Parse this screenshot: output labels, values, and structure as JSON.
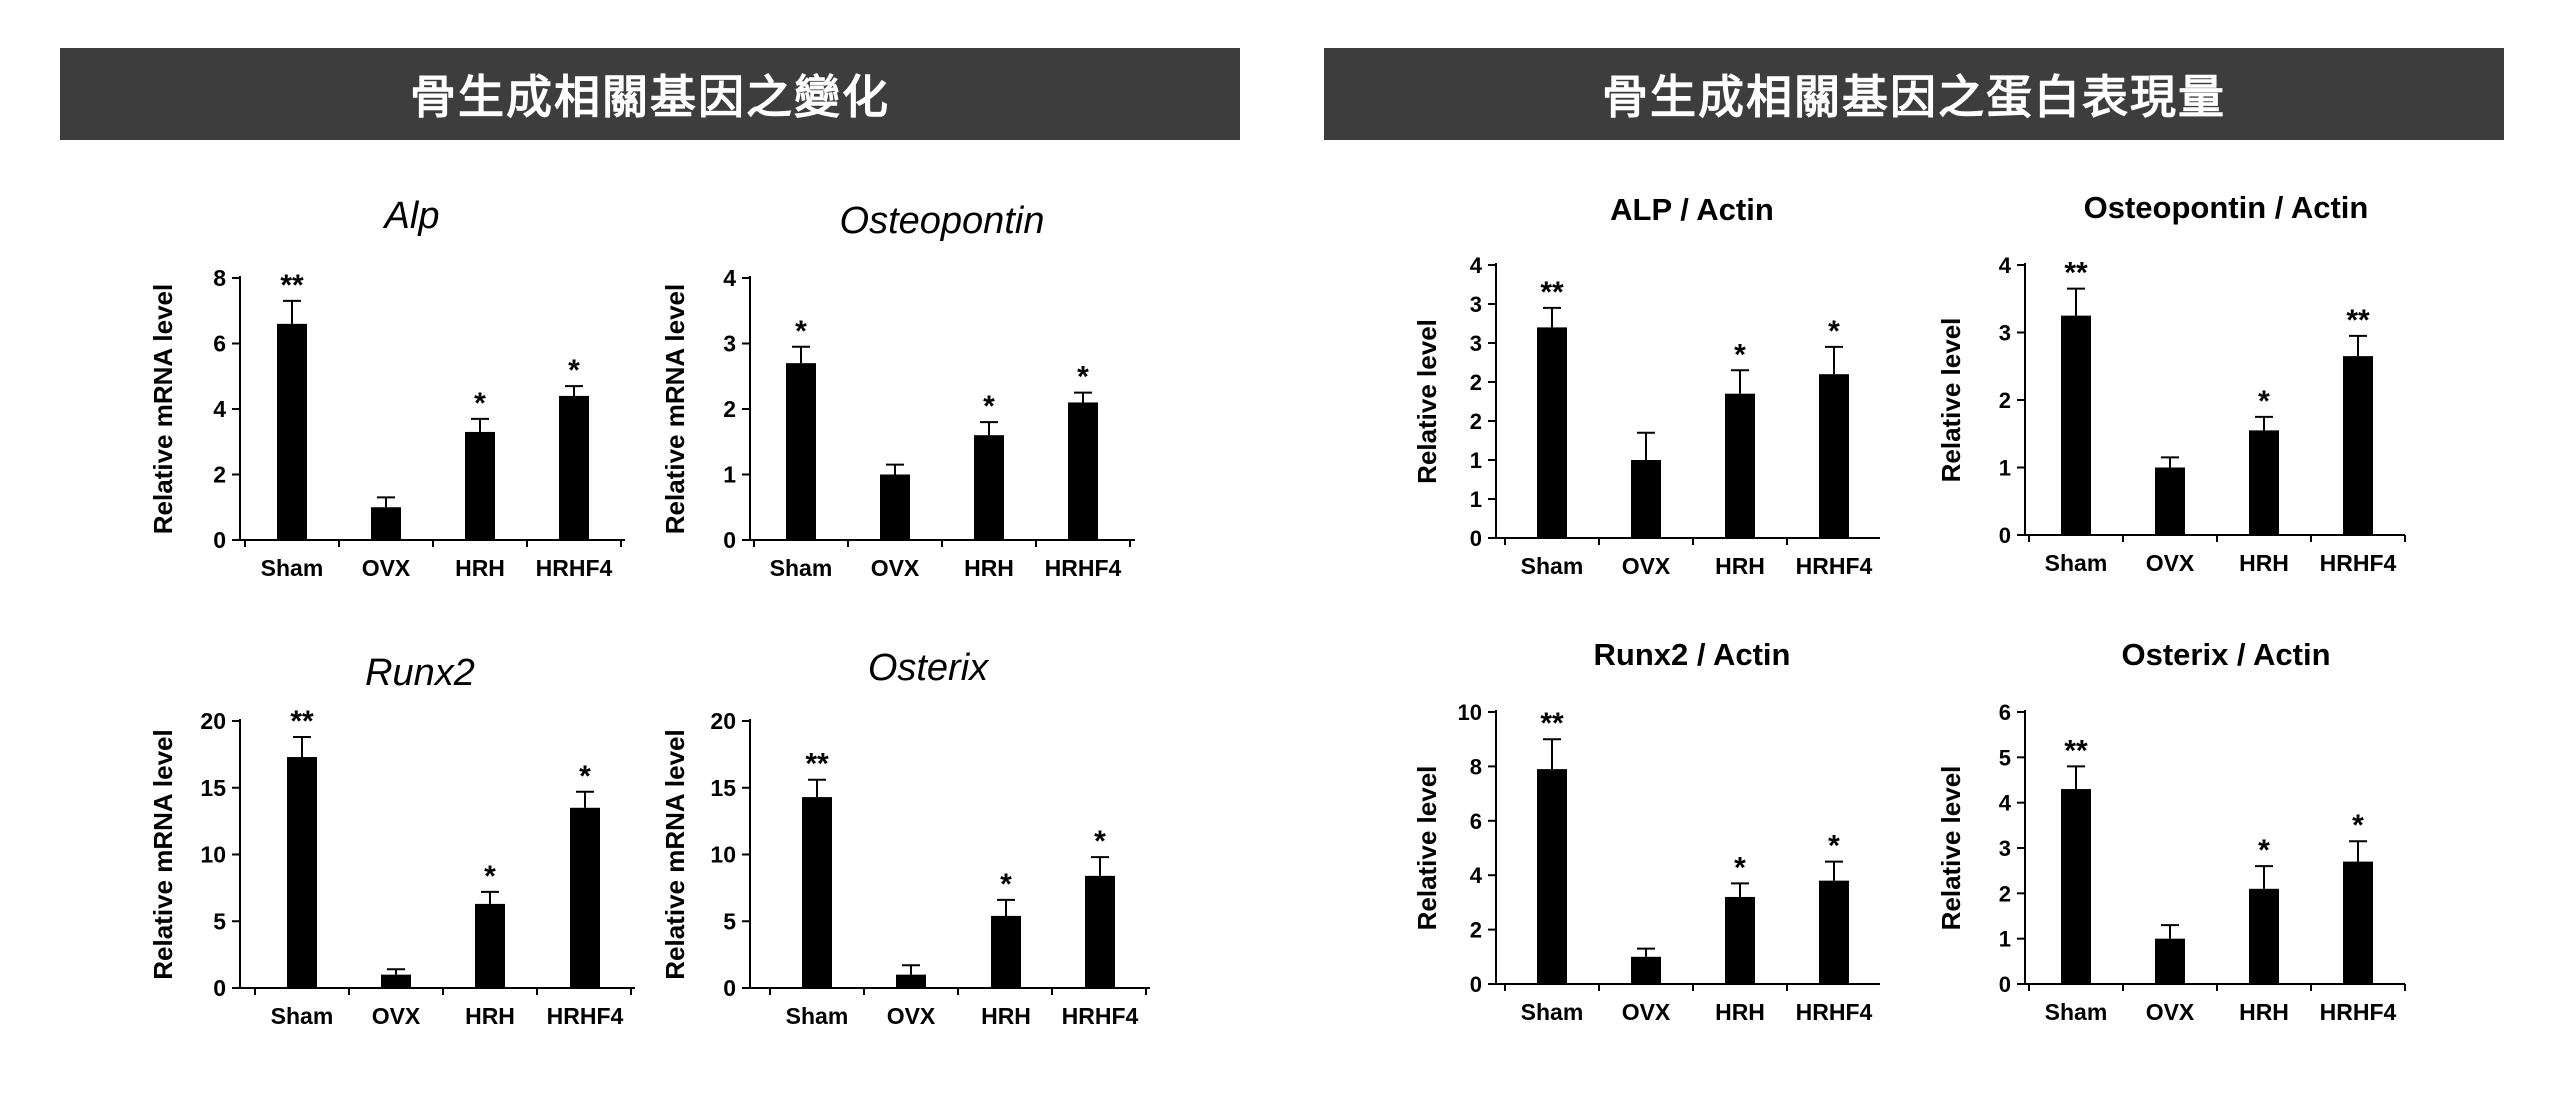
{
  "banners": {
    "left": "骨生成相關基因之變化",
    "right": "骨生成相關基因之蛋白表現量"
  },
  "chart_data": [
    {
      "type": "bar",
      "title": "Alp",
      "title_style": "italic",
      "ylabel": "Relative mRNA level",
      "categories": [
        "Sham",
        "OVX",
        "HRH",
        "HRHF4"
      ],
      "values": [
        6.6,
        1.0,
        3.3,
        4.4
      ],
      "errors": [
        0.7,
        0.3,
        0.4,
        0.3
      ],
      "significance": [
        "**",
        "",
        "*",
        "*"
      ],
      "ylim": [
        0,
        8
      ],
      "yticks": [
        "0",
        "2",
        "4",
        "6",
        "8"
      ],
      "grid": false
    },
    {
      "type": "bar",
      "title": "Osteopontin",
      "title_style": "italic",
      "ylabel": "Relative mRNA level",
      "categories": [
        "Sham",
        "OVX",
        "HRH",
        "HRHF4"
      ],
      "values": [
        2.7,
        1.0,
        1.6,
        2.1
      ],
      "errors": [
        0.25,
        0.15,
        0.2,
        0.15
      ],
      "significance": [
        "*",
        "",
        "*",
        "*"
      ],
      "ylim": [
        0,
        4
      ],
      "yticks": [
        "0",
        "1",
        "2",
        "3",
        "4"
      ],
      "grid": false
    },
    {
      "type": "bar",
      "title": "Runx2",
      "title_style": "italic",
      "ylabel": "Relative mRNA level",
      "categories": [
        "Sham",
        "OVX",
        "HRH",
        "HRHF4"
      ],
      "values": [
        17.3,
        1.0,
        6.3,
        13.5
      ],
      "errors": [
        1.5,
        0.4,
        0.9,
        1.2
      ],
      "significance": [
        "**",
        "",
        "*",
        "*"
      ],
      "ylim": [
        0,
        20
      ],
      "yticks": [
        "0",
        "5",
        "10",
        "15",
        "20"
      ],
      "grid": false
    },
    {
      "type": "bar",
      "title": "Osterix",
      "title_style": "italic",
      "ylabel": "Relative mRNA level",
      "categories": [
        "Sham",
        "OVX",
        "HRH",
        "HRHF4"
      ],
      "values": [
        14.3,
        1.0,
        5.4,
        8.4
      ],
      "errors": [
        1.3,
        0.7,
        1.2,
        1.4
      ],
      "significance": [
        "**",
        "",
        "*",
        "*"
      ],
      "ylim": [
        0,
        20
      ],
      "yticks": [
        "0",
        "5",
        "10",
        "15",
        "20"
      ],
      "grid": false
    },
    {
      "type": "bar",
      "title": "ALP / Actin",
      "title_style": "bold",
      "ylabel": "Relative  level",
      "categories": [
        "Sham",
        "OVX",
        "HRH",
        "HRHF4"
      ],
      "values": [
        2.7,
        1.0,
        1.85,
        2.1
      ],
      "errors": [
        0.25,
        0.35,
        0.3,
        0.35
      ],
      "significance": [
        "**",
        "",
        "*",
        "*"
      ],
      "ylim": [
        0,
        3.5
      ],
      "yticks": [
        "0",
        "1",
        "1",
        "2",
        "2",
        "3",
        "3",
        "4"
      ],
      "grid": false
    },
    {
      "type": "bar",
      "title": "Osteopontin / Actin",
      "title_style": "bold",
      "ylabel": "Relative  level",
      "categories": [
        "Sham",
        "OVX",
        "HRH",
        "HRHF4"
      ],
      "values": [
        3.25,
        1.0,
        1.55,
        2.65
      ],
      "errors": [
        0.4,
        0.15,
        0.2,
        0.3
      ],
      "significance": [
        "**",
        "",
        "*",
        "**"
      ],
      "ylim": [
        0,
        4
      ],
      "yticks": [
        "0",
        "1",
        "2",
        "3",
        "4"
      ],
      "grid": false
    },
    {
      "type": "bar",
      "title": "Runx2 / Actin",
      "title_style": "bold",
      "ylabel": "Relative  level",
      "categories": [
        "Sham",
        "OVX",
        "HRH",
        "HRHF4"
      ],
      "values": [
        7.9,
        1.0,
        3.2,
        3.8
      ],
      "errors": [
        1.1,
        0.3,
        0.5,
        0.7
      ],
      "significance": [
        "**",
        "",
        "*",
        "*"
      ],
      "ylim": [
        0,
        10
      ],
      "yticks": [
        "0",
        "2",
        "4",
        "6",
        "8",
        "10"
      ],
      "grid": false
    },
    {
      "type": "bar",
      "title": "Osterix / Actin",
      "title_style": "bold",
      "ylabel": "Relative  level",
      "categories": [
        "Sham",
        "OVX",
        "HRH",
        "HRHF4"
      ],
      "values": [
        4.3,
        1.0,
        2.1,
        2.7
      ],
      "errors": [
        0.5,
        0.3,
        0.5,
        0.45
      ],
      "significance": [
        "**",
        "",
        "*",
        "*"
      ],
      "ylim": [
        0,
        6
      ],
      "yticks": [
        "0",
        "1",
        "2",
        "3",
        "4",
        "5",
        "6"
      ],
      "grid": false
    }
  ]
}
